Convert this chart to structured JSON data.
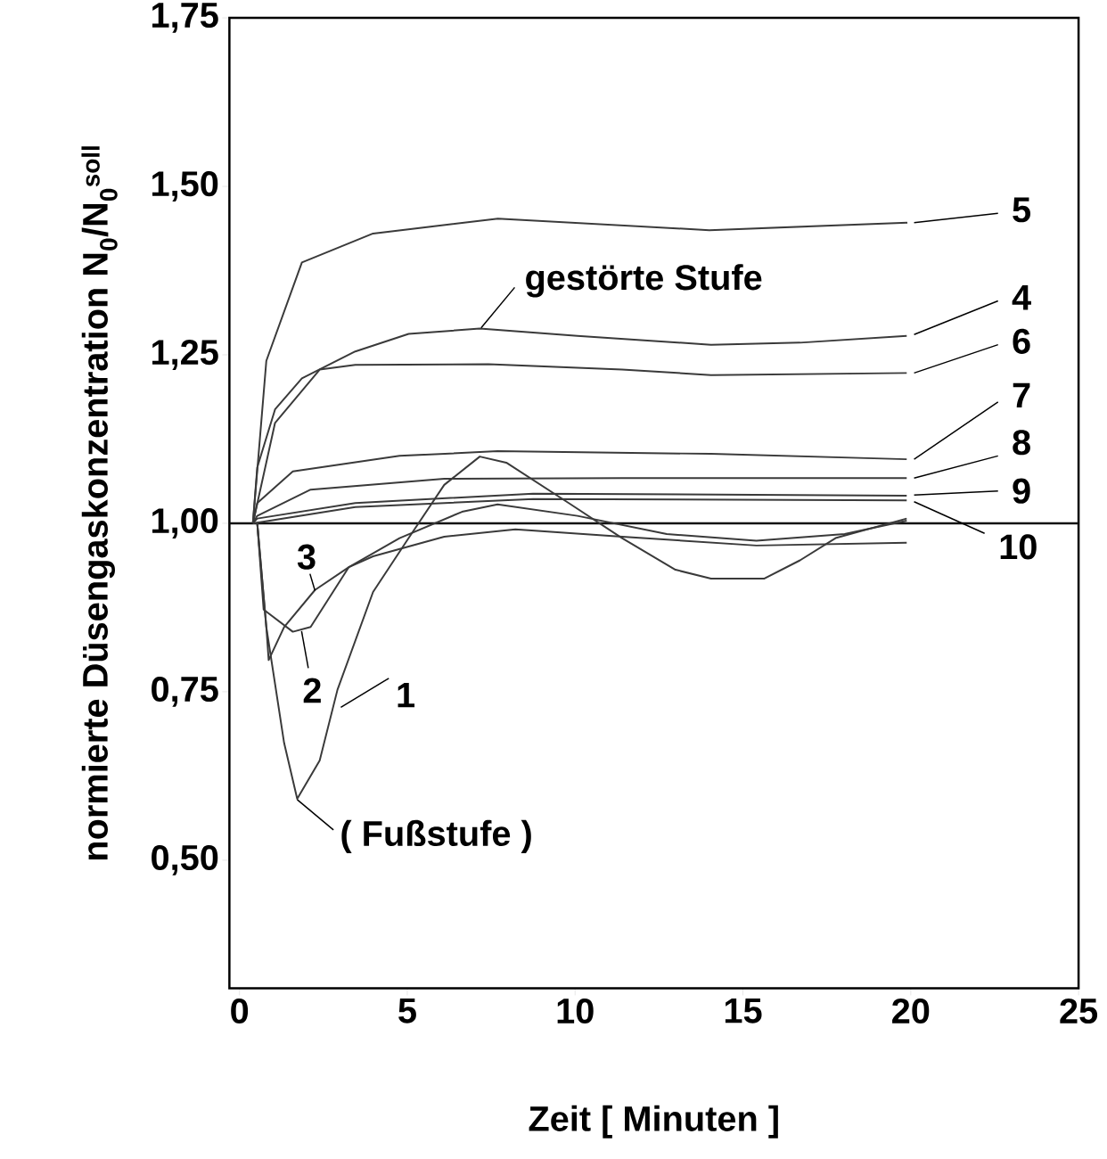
{
  "chart_data": {
    "type": "line",
    "xlabel": "Zeit [ Minuten ]",
    "ylabel": "normierte Düsengaskonzentration N$_{0}$/N$_{0}$$^{soll}$",
    "xlim": [
      -0.3,
      25
    ],
    "ylim": [
      0.31,
      1.75
    ],
    "xticks": [
      0,
      5,
      10,
      15,
      20,
      25
    ],
    "yticks": [
      {
        "value": 0.5,
        "label": "0,50"
      },
      {
        "value": 0.75,
        "label": "0,75"
      },
      {
        "value": 1.0,
        "label": "1,00"
      },
      {
        "value": 1.25,
        "label": "1,25"
      },
      {
        "value": 1.5,
        "label": "1,50"
      },
      {
        "value": 1.75,
        "label": "1,75"
      }
    ],
    "grid": false,
    "legend": false,
    "marker": "none",
    "line_style": "solid",
    "ref_lines": [
      {
        "axis": "y",
        "value": 1.0,
        "color": "#111111"
      }
    ],
    "annotations": [
      {
        "text": "gestörte Stufe",
        "x": 7.2,
        "y": 1.29
      },
      {
        "text": "( Fußstufe )",
        "x": 1.72,
        "y": 0.59
      }
    ],
    "series": [
      {
        "name": "1",
        "color": "#3a3a3a",
        "x": [
          0.53,
          0.8,
          1.33,
          1.72,
          2.39,
          2.92,
          3.98,
          5.04,
          6.1,
          7.16,
          7.95,
          9.81,
          11.4,
          12.99,
          14.05,
          15.64,
          16.7,
          17.76,
          19.88
        ],
        "values": [
          1.0,
          0.846,
          0.674,
          0.591,
          0.648,
          0.753,
          0.898,
          0.978,
          1.057,
          1.099,
          1.09,
          1.03,
          0.978,
          0.931,
          0.918,
          0.918,
          0.945,
          0.978,
          1.007
        ]
      },
      {
        "name": "2",
        "color": "#3a3a3a",
        "x": [
          0.53,
          0.72,
          1.59,
          2.12,
          3.26,
          3.98,
          6.1,
          8.22,
          11.4,
          15.4,
          19.88
        ],
        "values": [
          1.0,
          0.872,
          0.839,
          0.846,
          0.935,
          0.951,
          0.98,
          0.991,
          0.98,
          0.967,
          0.971
        ]
      },
      {
        "name": "3",
        "color": "#3a3a3a",
        "x": [
          0.53,
          0.8,
          0.87,
          1.33,
          2.25,
          3.26,
          4.77,
          6.63,
          7.69,
          10.07,
          12.73,
          15.4,
          18.03,
          19.88
        ],
        "values": [
          1.0,
          0.846,
          0.797,
          0.846,
          0.901,
          0.935,
          0.978,
          1.017,
          1.028,
          1.011,
          0.984,
          0.974,
          0.984,
          1.004
        ]
      },
      {
        "name": "4",
        "color": "#3a3a3a",
        "x": [
          0.4,
          0.53,
          1.06,
          1.86,
          3.45,
          5.04,
          7.16,
          10.07,
          14.05,
          16.7,
          19.88
        ],
        "values": [
          1.0,
          1.083,
          1.169,
          1.215,
          1.255,
          1.281,
          1.289,
          1.278,
          1.265,
          1.268,
          1.278
        ]
      },
      {
        "name": "5",
        "color": "#3a3a3a",
        "x": [
          0.4,
          0.8,
          1.86,
          3.98,
          7.7,
          14.0,
          19.9
        ],
        "values": [
          1.0,
          1.241,
          1.387,
          1.43,
          1.452,
          1.435,
          1.446
        ]
      },
      {
        "name": "6",
        "color": "#3a3a3a",
        "x": [
          0.4,
          1.06,
          2.39,
          3.45,
          7.42,
          11.4,
          14.05,
          19.88
        ],
        "values": [
          1.0,
          1.149,
          1.228,
          1.235,
          1.236,
          1.228,
          1.22,
          1.223
        ]
      },
      {
        "name": "7",
        "color": "#3a3a3a",
        "x": [
          0.4,
          0.53,
          1.59,
          4.77,
          7.69,
          14.05,
          19.88
        ],
        "values": [
          1.0,
          1.03,
          1.077,
          1.1,
          1.107,
          1.103,
          1.095
        ]
      },
      {
        "name": "8",
        "color": "#3a3a3a",
        "x": [
          0.4,
          0.53,
          2.12,
          6.1,
          11.4,
          19.88
        ],
        "values": [
          1.0,
          1.011,
          1.05,
          1.066,
          1.067,
          1.067
        ]
      },
      {
        "name": "9",
        "color": "#3a3a3a",
        "x": [
          0.4,
          0.53,
          3.45,
          8.75,
          19.88
        ],
        "values": [
          1.0,
          1.007,
          1.03,
          1.044,
          1.041
        ]
      },
      {
        "name": "10",
        "color": "#3a3a3a",
        "x": [
          0.4,
          0.53,
          3.45,
          8.75,
          19.88
        ],
        "values": [
          1.0,
          1.001,
          1.024,
          1.036,
          1.034
        ]
      }
    ]
  }
}
